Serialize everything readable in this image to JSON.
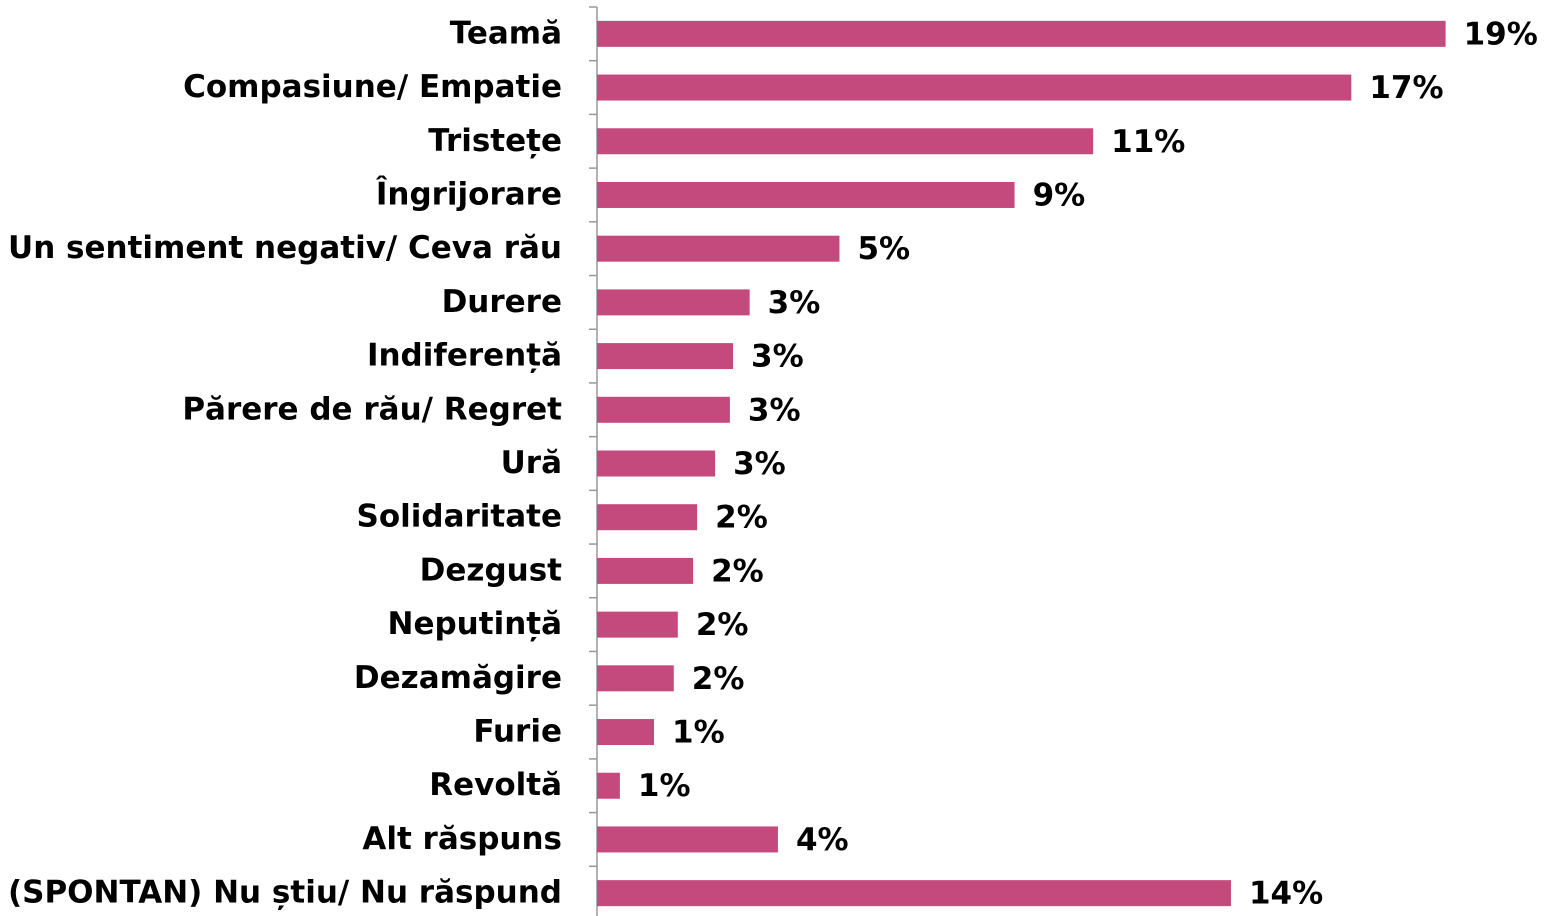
{
  "chart_data": {
    "type": "bar",
    "orientation": "horizontal",
    "categories": [
      "Teamă",
      "Compasiune/ Empatie",
      "Tristețe",
      "Îngrijorare",
      "Un sentiment negativ/ Ceva rău",
      "Durere",
      "Indiferență",
      "Părere de rău/ Regret",
      "Ură",
      "Solidaritate",
      "Dezgust",
      "Neputință",
      "Dezamăgire",
      "Furie",
      "Revoltă",
      "Alt răspuns",
      "(SPONTAN) Nu știu/ Nu răspund"
    ],
    "values": [
      18.9,
      16.8,
      11.05,
      9.3,
      5.4,
      3.4,
      3.03,
      2.96,
      2.63,
      2.23,
      2.14,
      1.8,
      1.71,
      1.27,
      0.51,
      4.03,
      14.12
    ],
    "value_labels": [
      "19%",
      "17%",
      "11%",
      "9%",
      "5%",
      "3%",
      "3%",
      "3%",
      "3%",
      "2%",
      "2%",
      "2%",
      "2%",
      "1%",
      "1%",
      "4%",
      "14%"
    ],
    "color": "#c44a7e",
    "xlim": [
      0,
      20
    ]
  }
}
